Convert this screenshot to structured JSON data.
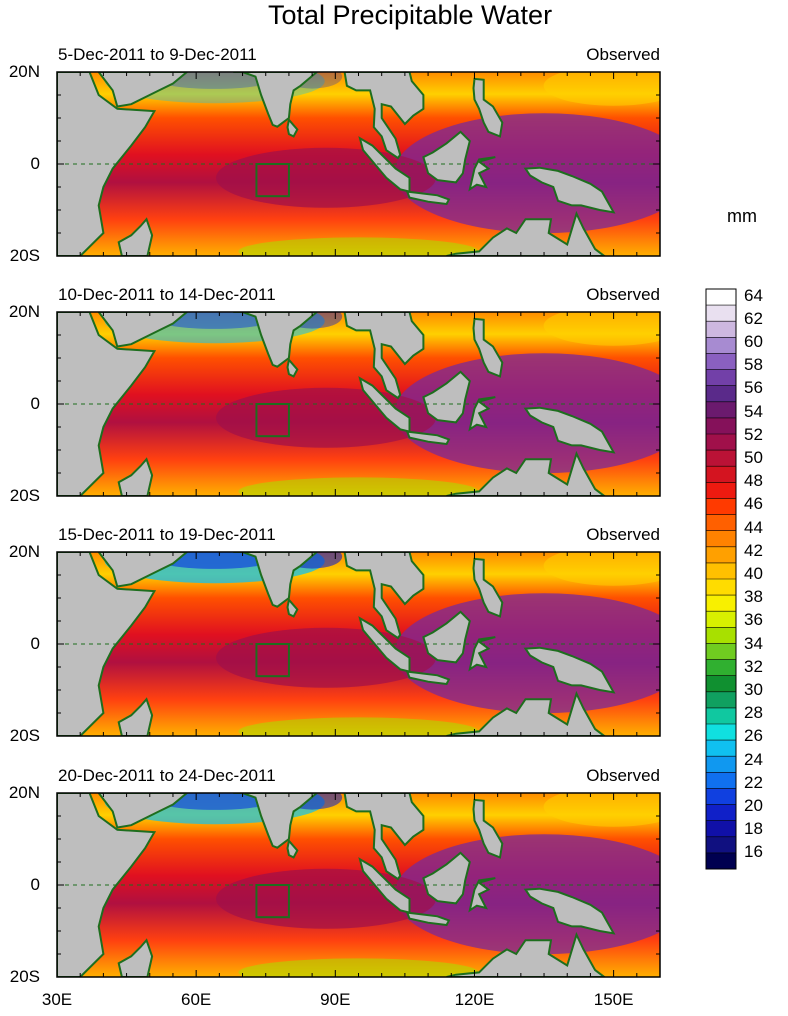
{
  "title": "Total Precipitable Water",
  "units": "mm",
  "panels": [
    {
      "period": "5-Dec-2011 to 9-Dec-2011",
      "tag": "Observed",
      "dry": 0.35
    },
    {
      "period": "10-Dec-2011 to 14-Dec-2011",
      "tag": "Observed",
      "dry": 0.55
    },
    {
      "period": "15-Dec-2011 to 19-Dec-2011",
      "tag": "Observed",
      "dry": 0.75
    },
    {
      "period": "20-Dec-2011 to 24-Dec-2011",
      "tag": "Observed",
      "dry": 0.7
    }
  ],
  "y_ticks": [
    "20N",
    "0",
    "20S"
  ],
  "x_ticks": [
    "30E",
    "60E",
    "90E",
    "120E",
    "150E"
  ],
  "colorbar": {
    "labels": [
      "64",
      "62",
      "60",
      "58",
      "56",
      "54",
      "52",
      "50",
      "48",
      "46",
      "44",
      "42",
      "40",
      "38",
      "36",
      "34",
      "32",
      "30",
      "28",
      "26",
      "24",
      "22",
      "20",
      "18",
      "16"
    ],
    "colors": [
      "#ffffff",
      "#e9e0f0",
      "#cdb8e0",
      "#a78bd1",
      "#8a60c0",
      "#7240a8",
      "#5a2a8a",
      "#6b1a6e",
      "#85115a",
      "#a0104a",
      "#bb1236",
      "#d41420",
      "#ee1a10",
      "#ff3a00",
      "#ff6000",
      "#ff8200",
      "#ffa000",
      "#ffc000",
      "#ffdc00",
      "#f8f000",
      "#d8f000",
      "#a8e000",
      "#70cc20",
      "#30b030",
      "#109030",
      "#10a060",
      "#10c8a0",
      "#10e0e0",
      "#10c0f0",
      "#1098f0",
      "#1070f0",
      "#1040e0",
      "#1020c8",
      "#1010a8",
      "#101080",
      "#000050"
    ],
    "range": [
      15,
      65
    ]
  }
}
